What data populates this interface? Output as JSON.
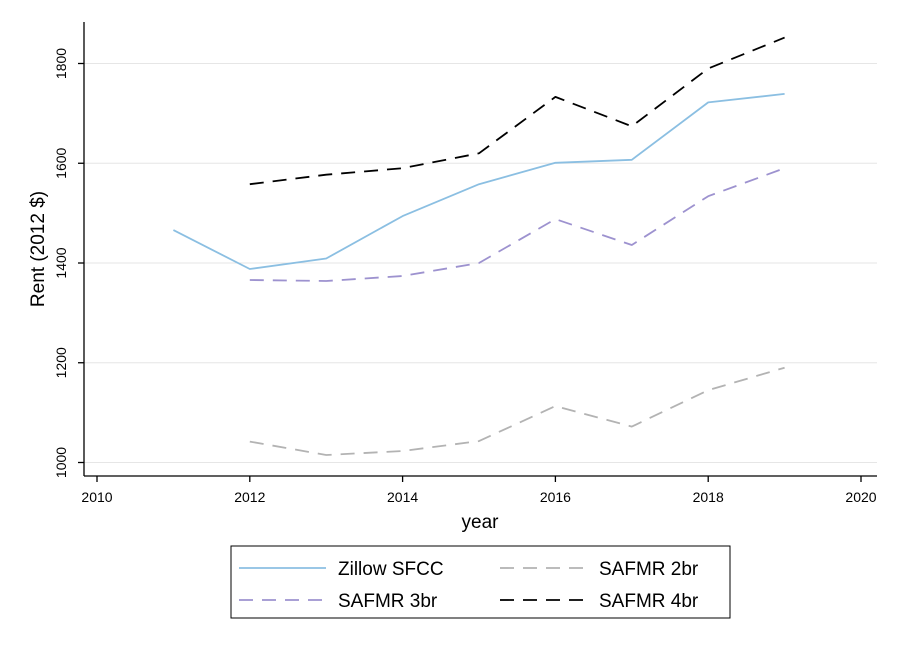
{
  "chart_data": {
    "type": "line",
    "title": "",
    "xlabel": "year",
    "ylabel": "Rent (2012 $)",
    "xlim": [
      2010,
      2020
    ],
    "ylim": [
      1000,
      1850
    ],
    "x_ticks": [
      2010,
      2012,
      2014,
      2016,
      2018,
      2020
    ],
    "y_ticks": [
      1000,
      1200,
      1400,
      1600,
      1800
    ],
    "grid": "horizontal",
    "legend_position": "bottom",
    "series": [
      {
        "name": "Zillow SFCC",
        "color": "#8bbfe2",
        "dash": "solid",
        "x": [
          2011,
          2012,
          2013,
          2014,
          2015,
          2016,
          2017,
          2018,
          2019
        ],
        "values": [
          1466,
          1388,
          1409,
          1494,
          1558,
          1601,
          1607,
          1722,
          1739
        ]
      },
      {
        "name": "SAFMR 2br",
        "color": "#b3b3b3",
        "dash": "dashed",
        "x": [
          2012,
          2013,
          2014,
          2015,
          2016,
          2017,
          2018,
          2019
        ],
        "values": [
          1042,
          1015,
          1023,
          1043,
          1113,
          1072,
          1145,
          1190
        ]
      },
      {
        "name": "SAFMR 3br",
        "color": "#9d92cf",
        "dash": "dashed",
        "x": [
          2012,
          2013,
          2014,
          2015,
          2016,
          2017,
          2018,
          2019
        ],
        "values": [
          1366,
          1364,
          1374,
          1400,
          1488,
          1436,
          1534,
          1590
        ]
      },
      {
        "name": "SAFMR 4br",
        "color": "#000000",
        "dash": "dashed",
        "x": [
          2012,
          2013,
          2014,
          2015,
          2016,
          2017,
          2018,
          2019
        ],
        "values": [
          1558,
          1577,
          1590,
          1620,
          1733,
          1674,
          1790,
          1852
        ]
      }
    ]
  }
}
